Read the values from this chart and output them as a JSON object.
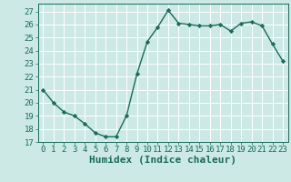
{
  "x": [
    0,
    1,
    2,
    3,
    4,
    5,
    6,
    7,
    8,
    9,
    10,
    11,
    12,
    13,
    14,
    15,
    16,
    17,
    18,
    19,
    20,
    21,
    22,
    23
  ],
  "y": [
    21,
    20,
    19.3,
    19,
    18.4,
    17.7,
    17.4,
    17.4,
    19,
    22.2,
    24.7,
    25.8,
    27.1,
    26.1,
    26.0,
    25.9,
    25.9,
    26.0,
    25.5,
    26.1,
    26.2,
    25.9,
    24.5,
    23.2
  ],
  "line_color": "#1a6b5a",
  "marker": "D",
  "marker_size": 2.2,
  "line_width": 1.0,
  "bg_color": "#cce9e5",
  "grid_color": "#ffffff",
  "xlabel": "Humidex (Indice chaleur)",
  "xlim": [
    -0.5,
    23.5
  ],
  "ylim": [
    17,
    27.6
  ],
  "yticks": [
    17,
    18,
    19,
    20,
    21,
    22,
    23,
    24,
    25,
    26,
    27
  ],
  "xticks": [
    0,
    1,
    2,
    3,
    4,
    5,
    6,
    7,
    8,
    9,
    10,
    11,
    12,
    13,
    14,
    15,
    16,
    17,
    18,
    19,
    20,
    21,
    22,
    23
  ],
  "tick_fontsize": 6.5,
  "xlabel_fontsize": 8.0,
  "tick_color": "#1a6b5a",
  "xlabel_color": "#1a6b5a"
}
